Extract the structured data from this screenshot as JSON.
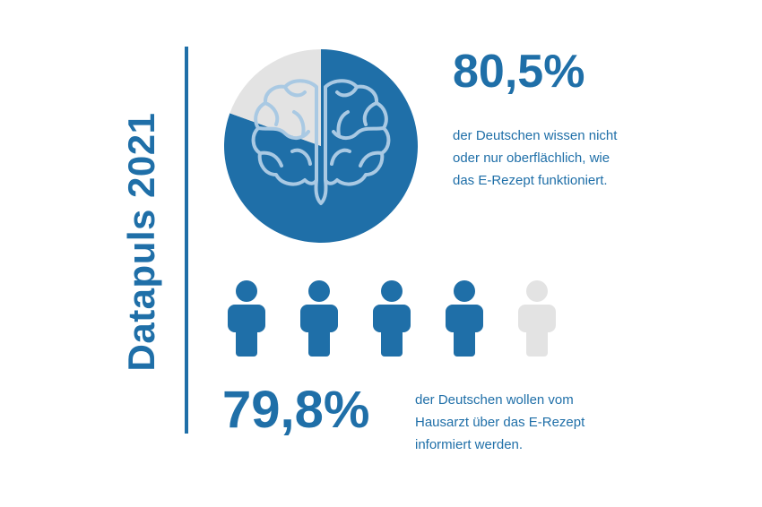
{
  "title": "Datapuls 2021",
  "colors": {
    "primary": "#1f6fa8",
    "muted": "#e3e3e3",
    "icon_line": "#a9c9e3"
  },
  "stat1": {
    "value_label": "80,5%",
    "description": "der Deutschen wissen nicht oder nur oberflächlich, wie das E-Rezept funktioniert."
  },
  "stat2": {
    "value_label": "79,8%",
    "description": "der Deutschen wollen vom Hausarzt über das E-Rezept informiert werden."
  },
  "chart_data": [
    {
      "type": "pie",
      "values": [
        80.5,
        19.5
      ],
      "icon": "brain-icon"
    },
    {
      "type": "pictogram",
      "value": 79.8,
      "total": 100,
      "units": 5,
      "icon": "person-icon"
    }
  ]
}
